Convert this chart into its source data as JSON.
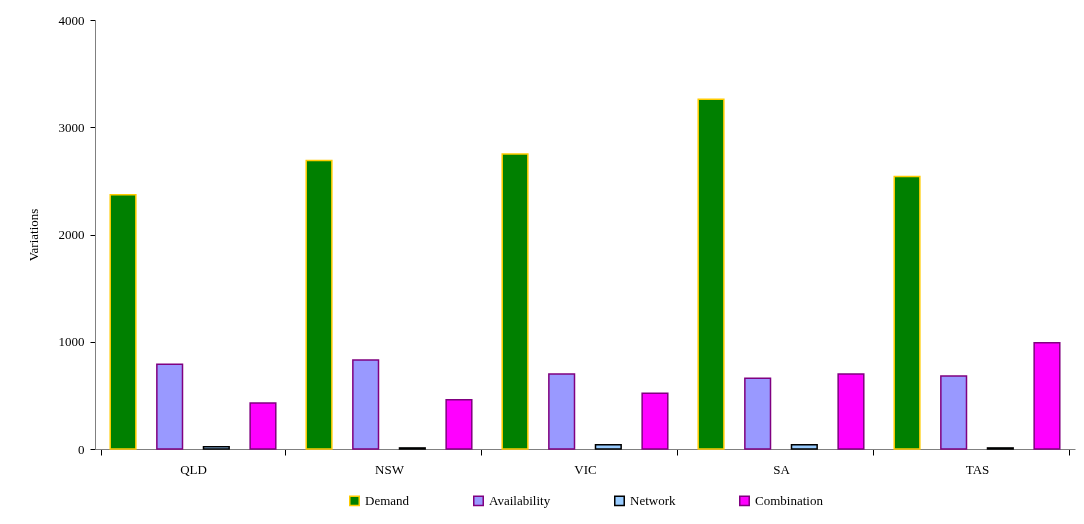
{
  "chart_data": {
    "type": "bar",
    "ylabel": "Variations",
    "categories": [
      "QLD",
      "NSW",
      "VIC",
      "SA",
      "TAS"
    ],
    "series": [
      {
        "name": "Demand",
        "color": "#008000",
        "values": [
          2370,
          2690,
          2750,
          3260,
          2540
        ]
      },
      {
        "name": "Availability",
        "color": "#9999ff",
        "values": [
          790,
          830,
          700,
          660,
          680
        ]
      },
      {
        "name": "Network",
        "color": "#99ccff",
        "values": [
          20,
          10,
          40,
          40,
          10
        ]
      },
      {
        "name": "Combination",
        "color": "#ff00ff",
        "values": [
          430,
          460,
          520,
          700,
          990
        ]
      }
    ],
    "ylim": [
      0,
      4000
    ],
    "yticks": [
      0,
      1000,
      2000,
      3000,
      4000
    ],
    "grid": false,
    "legend": "bottom"
  }
}
